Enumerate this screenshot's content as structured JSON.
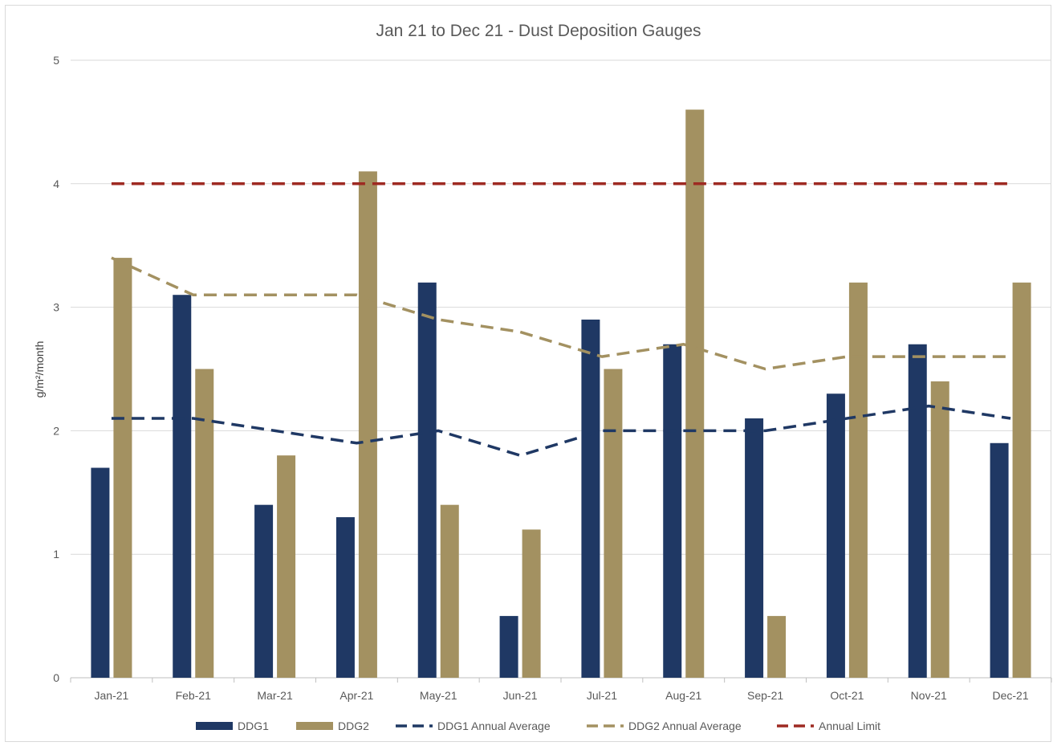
{
  "chart_data": {
    "type": "bar",
    "title": "Jan 21 to Dec 21 - Dust Deposition Gauges",
    "xlabel": "",
    "ylabel": "g/m²/month",
    "ylim": [
      0,
      5
    ],
    "yticks": [
      0,
      1,
      2,
      3,
      4,
      5
    ],
    "grid": true,
    "legend_position": "bottom",
    "categories": [
      "Jan-21",
      "Feb-21",
      "Mar-21",
      "Apr-21",
      "May-21",
      "Jun-21",
      "Jul-21",
      "Aug-21",
      "Sep-21",
      "Oct-21",
      "Nov-21",
      "Dec-21"
    ],
    "series": [
      {
        "name": "DDG1",
        "kind": "bar",
        "color": "#1f3864",
        "values": [
          1.7,
          3.1,
          1.4,
          1.3,
          3.2,
          0.5,
          2.9,
          2.7,
          2.1,
          2.3,
          2.7,
          1.9
        ]
      },
      {
        "name": "DDG2",
        "kind": "bar",
        "color": "#a39161",
        "values": [
          3.4,
          2.5,
          1.8,
          4.1,
          1.4,
          1.2,
          2.5,
          4.6,
          0.5,
          3.2,
          2.4,
          3.2
        ]
      },
      {
        "name": "DDG1 Annual Average",
        "kind": "dashed-line",
        "color": "#1f3864",
        "values": [
          2.1,
          2.1,
          2.0,
          1.9,
          2.0,
          1.8,
          2.0,
          2.0,
          2.0,
          2.1,
          2.2,
          2.1
        ]
      },
      {
        "name": "DDG2 Annual Average",
        "kind": "dashed-line",
        "color": "#a39161",
        "values": [
          3.4,
          3.1,
          3.1,
          3.1,
          2.9,
          2.8,
          2.6,
          2.7,
          2.5,
          2.6,
          2.6,
          2.6
        ]
      },
      {
        "name": "Annual Limit",
        "kind": "dashed-line",
        "color": "#9e2a22",
        "values": [
          4,
          4,
          4,
          4,
          4,
          4,
          4,
          4,
          4,
          4,
          4,
          4
        ]
      }
    ]
  }
}
